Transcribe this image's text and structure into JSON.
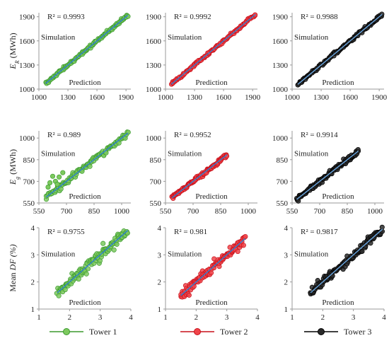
{
  "colors": {
    "tower1_fill": "#7dc95e",
    "tower1_edge": "#3b9a2f",
    "tower1_line": "#2f7fd0",
    "tower2_fill": "#f0444a",
    "tower2_edge": "#c8101a",
    "tower2_line": "#2f7fd0",
    "tower3_fill": "#2a2a2a",
    "tower3_edge": "#000000",
    "tower3_line": "#6aa6e0"
  },
  "legend": [
    "Tower 1",
    "Tower 2",
    "Tower 3"
  ],
  "row_labels": [
    {
      "main": "E",
      "sub": "R",
      "unit": " (MWh)"
    },
    {
      "main": "E",
      "sub": "g",
      "unit": " (MWh)"
    },
    {
      "main": "Mean ",
      "sub": "",
      "unit": "DF (%)"
    }
  ],
  "chart_data": [
    {
      "type": "scatter",
      "series": [
        {
          "name": "Tower 1"
        }
      ],
      "r2": "R² = 0.9993",
      "xlabel": "Prediction",
      "ylabel": "Simulation",
      "xlim": [
        1000,
        1950
      ],
      "ylim": [
        1000,
        1950
      ],
      "xticks": [
        "1000",
        "1300",
        "1600",
        "1900"
      ],
      "yticks": [
        "1000",
        "1300",
        "1600",
        "1900"
      ],
      "range": [
        1070,
        1920
      ],
      "spread": 0.012
    },
    {
      "type": "scatter",
      "series": [
        {
          "name": "Tower 2"
        }
      ],
      "r2": "R² = 0.9992",
      "xlabel": "Prediction",
      "ylabel": "Simulation",
      "xlim": [
        1000,
        1950
      ],
      "ylim": [
        1000,
        1950
      ],
      "xticks": [
        "1000",
        "1300",
        "1600",
        "1900"
      ],
      "yticks": [
        "1000",
        "1300",
        "1600",
        "1900"
      ],
      "range": [
        1060,
        1930
      ],
      "spread": 0.012
    },
    {
      "type": "scatter",
      "series": [
        {
          "name": "Tower 3"
        }
      ],
      "r2": "R² = 0.9988",
      "xlabel": "Prediction",
      "ylabel": "Simulation",
      "xlim": [
        1000,
        1950
      ],
      "ylim": [
        1000,
        1950
      ],
      "xticks": [
        "1000",
        "1300",
        "1600",
        "1900"
      ],
      "yticks": [
        "1000",
        "1300",
        "1600",
        "1900"
      ],
      "range": [
        1060,
        1930
      ],
      "spread": 0.014
    },
    {
      "type": "scatter",
      "series": [
        {
          "name": "Tower 1"
        }
      ],
      "r2": "R² = 0.989",
      "xlabel": "Prediction",
      "ylabel": "Simulation",
      "xlim": [
        550,
        1050
      ],
      "ylim": [
        550,
        1050
      ],
      "xticks": [
        "550",
        "700",
        "850",
        "1000"
      ],
      "yticks": [
        "550",
        "700",
        "850",
        "1000"
      ],
      "range": [
        590,
        1035
      ],
      "spread": 0.03
    },
    {
      "type": "scatter",
      "series": [
        {
          "name": "Tower 2"
        }
      ],
      "r2": "R² = 0.9952",
      "xlabel": "Prediction",
      "ylabel": "Simulation",
      "xlim": [
        550,
        1050
      ],
      "ylim": [
        550,
        1050
      ],
      "xticks": [
        "550",
        "700",
        "850",
        "1000"
      ],
      "yticks": [
        "550",
        "700",
        "850",
        "1000"
      ],
      "range": [
        585,
        885
      ],
      "spread": 0.02
    },
    {
      "type": "scatter",
      "series": [
        {
          "name": "Tower 3"
        }
      ],
      "r2": "R² = 0.9914",
      "xlabel": "Prediction",
      "ylabel": "Simulation",
      "xlim": [
        550,
        1050
      ],
      "ylim": [
        550,
        1050
      ],
      "xticks": [
        "550",
        "700",
        "850",
        "1000"
      ],
      "yticks": [
        "550",
        "700",
        "850",
        "1000"
      ],
      "range": [
        575,
        910
      ],
      "spread": 0.025
    },
    {
      "type": "scatter",
      "series": [
        {
          "name": "Tower 1"
        }
      ],
      "r2": "R² = 0.9755",
      "xlabel": "Prediction",
      "ylabel": "Simulation",
      "xlim": [
        1,
        4
      ],
      "ylim": [
        1,
        4
      ],
      "xticks": [
        "1",
        "2",
        "3",
        "4"
      ],
      "yticks": [
        "1",
        "2",
        "3",
        "4"
      ],
      "range": [
        1.6,
        3.9
      ],
      "spread": 0.05
    },
    {
      "type": "scatter",
      "series": [
        {
          "name": "Tower 2"
        }
      ],
      "r2": "R² = 0.981",
      "xlabel": "Prediction",
      "ylabel": "Simulation",
      "xlim": [
        1,
        4
      ],
      "ylim": [
        1,
        4
      ],
      "xticks": [
        "1",
        "2",
        "3",
        "4"
      ],
      "yticks": [
        "1",
        "2",
        "3",
        "4"
      ],
      "range": [
        1.5,
        3.6
      ],
      "spread": 0.045
    },
    {
      "type": "scatter",
      "series": [
        {
          "name": "Tower 3"
        }
      ],
      "r2": "R² = 0.9817",
      "xlabel": "Prediction",
      "ylabel": "Simulation",
      "xlim": [
        1,
        4
      ],
      "ylim": [
        1,
        4
      ],
      "xticks": [
        "1",
        "2",
        "3",
        "4"
      ],
      "yticks": [
        "1",
        "2",
        "3",
        "4"
      ],
      "range": [
        1.6,
        3.95
      ],
      "spread": 0.045
    }
  ]
}
